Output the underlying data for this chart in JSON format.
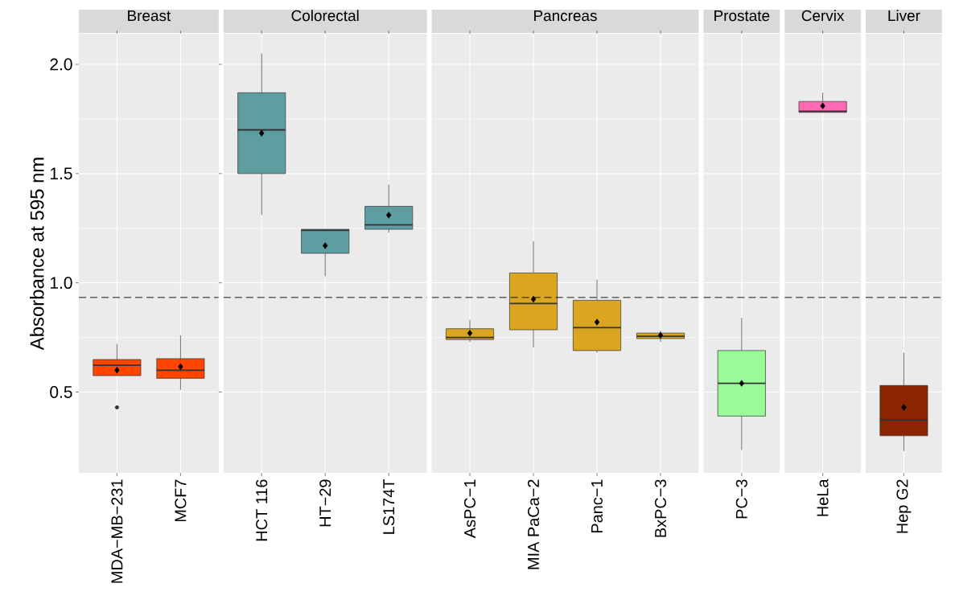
{
  "chart_data": [
    {
      "type": "box",
      "title": "Breast",
      "ylabel": "Absorbance at 595 nm",
      "categories": [
        "MDA−MB−231",
        "MCF7"
      ],
      "color": "#ff4500",
      "ylim": [
        0.13,
        2.14
      ],
      "yticks": [
        {
          "value": 0.5,
          "label": "0.5"
        },
        {
          "value": 1.0,
          "label": "1.0"
        },
        {
          "value": 1.5,
          "label": "1.5"
        },
        {
          "value": 2.0,
          "label": "2.0"
        }
      ],
      "grid": true,
      "ref_lines": [
        {
          "axis": "y",
          "value": 0.933,
          "line_style": "dashed"
        }
      ],
      "boxes": [
        {
          "low": 0.575,
          "q1": 0.575,
          "median": 0.623,
          "q3": 0.649,
          "high": 0.72,
          "mean": 0.6,
          "outliers": [
            0.43
          ]
        },
        {
          "low": 0.51,
          "q1": 0.563,
          "median": 0.6,
          "q3": 0.653,
          "high": 0.76,
          "mean": 0.616
        }
      ]
    },
    {
      "type": "box",
      "title": "Colorectal",
      "categories": [
        "HCT 116",
        "HT−29",
        "LS174T"
      ],
      "color": "#5f9ea0",
      "ylim": [
        0.13,
        2.14
      ],
      "yticks": [
        {
          "value": 0.5,
          "label": null
        },
        {
          "value": 1.0,
          "label": null
        },
        {
          "value": 1.5,
          "label": null
        },
        {
          "value": 2.0,
          "label": null
        }
      ],
      "tick_labels": "x",
      "grid": true,
      "ref_lines": [
        {
          "axis": "y",
          "value": 0.933,
          "line_style": "dashed"
        }
      ],
      "boxes": [
        {
          "low": 1.31,
          "q1": 1.5,
          "median": 1.7,
          "q3": 1.87,
          "high": 2.05,
          "mean": 1.685
        },
        {
          "low": 1.03,
          "q1": 1.135,
          "median": 1.24,
          "q3": 1.245,
          "high": 1.245,
          "mean": 1.17
        },
        {
          "low": 1.23,
          "q1": 1.245,
          "median": 1.265,
          "q3": 1.35,
          "high": 1.45,
          "mean": 1.31
        }
      ]
    },
    {
      "type": "box",
      "title": "Pancreas",
      "categories": [
        "AsPC−1",
        "MIA PaCa−2",
        "Panc−1",
        "BxPC−3"
      ],
      "color": "#daa520",
      "ylim": [
        0.13,
        2.14
      ],
      "yticks": [
        {
          "value": 0.5,
          "label": null
        },
        {
          "value": 1.0,
          "label": null
        },
        {
          "value": 1.5,
          "label": null
        },
        {
          "value": 2.0,
          "label": null
        }
      ],
      "tick_labels": "x",
      "grid": true,
      "ref_lines": [
        {
          "axis": "y",
          "value": 0.933,
          "line_style": "dashed"
        }
      ],
      "boxes": [
        {
          "low": 0.73,
          "q1": 0.74,
          "median": 0.75,
          "q3": 0.79,
          "high": 0.83,
          "mean": 0.77
        },
        {
          "low": 0.705,
          "q1": 0.785,
          "median": 0.905,
          "q3": 1.045,
          "high": 1.19,
          "mean": 0.925
        },
        {
          "low": 0.68,
          "q1": 0.69,
          "median": 0.795,
          "q3": 0.92,
          "high": 1.015,
          "mean": 0.82
        },
        {
          "low": 0.73,
          "q1": 0.745,
          "median": 0.755,
          "q3": 0.77,
          "high": 0.78,
          "mean": 0.76
        }
      ]
    },
    {
      "type": "box",
      "title": "Prostate",
      "categories": [
        "PC−3"
      ],
      "color": "#98fb98",
      "ylim": [
        0.13,
        2.14
      ],
      "yticks": [
        {
          "value": 0.5,
          "label": null
        },
        {
          "value": 1.0,
          "label": null
        },
        {
          "value": 1.5,
          "label": null
        },
        {
          "value": 2.0,
          "label": null
        }
      ],
      "tick_labels": "x",
      "grid": true,
      "ref_lines": [
        {
          "axis": "y",
          "value": 0.933,
          "line_style": "dashed"
        }
      ],
      "boxes": [
        {
          "low": 0.235,
          "q1": 0.39,
          "median": 0.54,
          "q3": 0.69,
          "high": 0.84,
          "mean": 0.54
        }
      ]
    },
    {
      "type": "box",
      "title": "Cervix",
      "categories": [
        "HeLa"
      ],
      "color": "#ff69b4",
      "ylim": [
        0.13,
        2.14
      ],
      "yticks": [
        {
          "value": 0.5,
          "label": null
        },
        {
          "value": 1.0,
          "label": null
        },
        {
          "value": 1.5,
          "label": null
        },
        {
          "value": 2.0,
          "label": null
        }
      ],
      "tick_labels": "x",
      "grid": true,
      "ref_lines": [
        {
          "axis": "y",
          "value": 0.933,
          "line_style": "dashed"
        }
      ],
      "boxes": [
        {
          "low": 1.78,
          "q1": 1.78,
          "median": 1.785,
          "q3": 1.83,
          "high": 1.87,
          "mean": 1.81
        }
      ]
    },
    {
      "type": "box",
      "title": "Liver",
      "categories": [
        "Hep G2"
      ],
      "color": "#8b2500",
      "ylim": [
        0.13,
        2.14
      ],
      "yticks": [
        {
          "value": 0.5,
          "label": null
        },
        {
          "value": 1.0,
          "label": null
        },
        {
          "value": 1.5,
          "label": null
        },
        {
          "value": 2.0,
          "label": null
        }
      ],
      "tick_labels": "x",
      "grid": true,
      "ref_lines": [
        {
          "axis": "y",
          "value": 0.933,
          "line_style": "dashed"
        }
      ],
      "boxes": [
        {
          "low": 0.23,
          "q1": 0.3,
          "median": 0.373,
          "q3": 0.53,
          "high": 0.68,
          "mean": 0.43
        }
      ]
    }
  ]
}
